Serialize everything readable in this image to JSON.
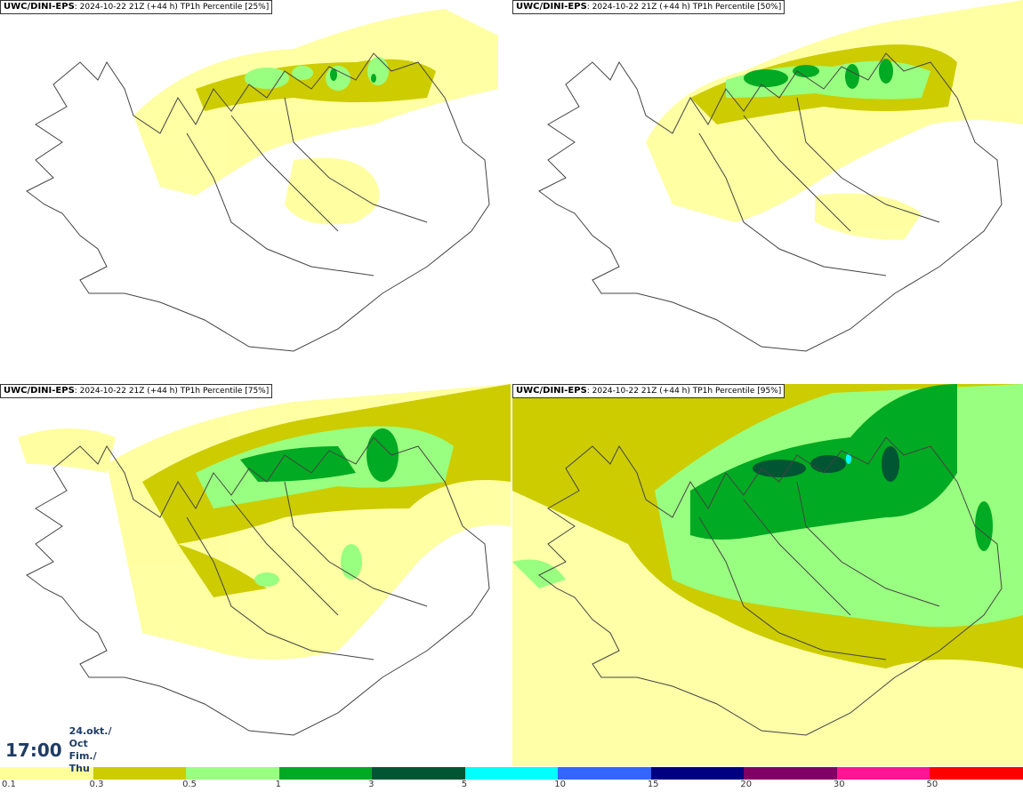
{
  "panels": [
    {
      "model": "UWC/DINI-EPS",
      "info": ": 2024-10-22 21Z (+44 h) TP1h Percentile [25%]"
    },
    {
      "model": "UWC/DINI-EPS",
      "info": ": 2024-10-22 21Z (+44 h) TP1h Percentile [50%]"
    },
    {
      "model": "UWC/DINI-EPS",
      "info": ": 2024-10-22 21Z (+44 h) TP1h Percentile [75%]"
    },
    {
      "model": "UWC/DINI-EPS",
      "info": ": 2024-10-22 21Z (+44 h) TP1h Percentile [95%]"
    }
  ],
  "valid_time": {
    "time": "17:00",
    "date": "24.okt./ Oct",
    "day": "Fim./ Thu"
  },
  "legend": {
    "labels": [
      "0.1",
      "0.3",
      "0.5",
      "1",
      "3",
      "5",
      "10",
      "15",
      "20",
      "30",
      "50"
    ],
    "colors": [
      "#ffff99",
      "#cccc00",
      "#99ff80",
      "#00aa22",
      "#005533",
      "#00ffff",
      "#3366ff",
      "#000080",
      "#800066",
      "#ff1493",
      "#ff0000"
    ]
  }
}
